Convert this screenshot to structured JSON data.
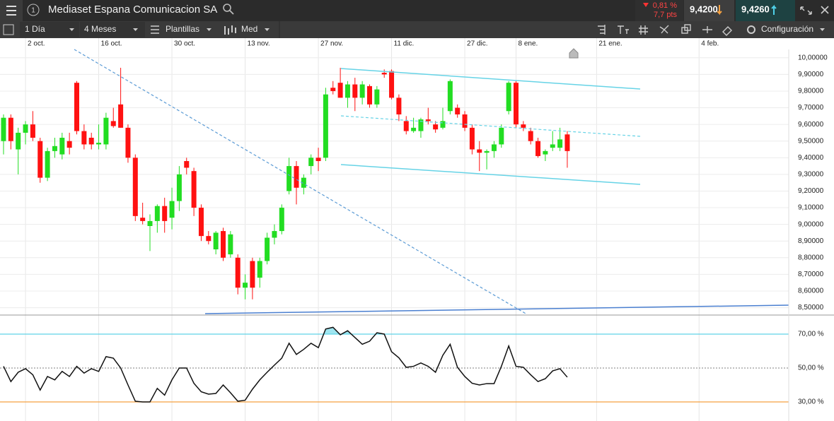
{
  "header": {
    "title": "Mediaset Espana Comunicacion SA",
    "info": "1",
    "change_pct": "0,81 %",
    "change_pts": "7,7 pts",
    "sell": "9,4200",
    "buy": "9,4260"
  },
  "toolbar": {
    "interval": "1 Día",
    "range": "4 Meses",
    "templates": "Plantillas",
    "style": "Med",
    "settings": "Configuración"
  },
  "chart_data": [
    {
      "type": "candlestick",
      "up_color": "#22dd22",
      "down_color": "#ff1111",
      "grid": true,
      "categories": [
        null,
        null,
        null,
        "2 oct.",
        null,
        null,
        null,
        null,
        null,
        null,
        null,
        null,
        null,
        "16 oct.",
        null,
        null,
        null,
        null,
        null,
        null,
        null,
        null,
        null,
        "30 oct.",
        null,
        null,
        null,
        null,
        null,
        null,
        null,
        null,
        null,
        "13 nov.",
        null,
        null,
        null,
        null,
        null,
        null,
        null,
        null,
        null,
        "27 nov.",
        null,
        null,
        null,
        null,
        null,
        null,
        null,
        null,
        null,
        "11 dic.",
        null,
        null,
        null,
        null,
        null,
        null,
        null,
        null,
        null,
        "27 dic.",
        null,
        null,
        null,
        null,
        null,
        null,
        "8 ene.",
        null,
        null,
        null,
        null,
        null,
        null,
        null,
        null,
        null,
        null,
        "21 ene.",
        null,
        null,
        null,
        null,
        null,
        null,
        null,
        null,
        null,
        null,
        null,
        null,
        null,
        "4 feb.",
        null,
        null,
        null,
        null,
        null,
        null,
        null,
        null,
        null,
        null,
        null,
        null
      ],
      "open": [
        9.5,
        9.64,
        9.45,
        9.55,
        9.6,
        9.5,
        9.28,
        9.44,
        9.42,
        9.5,
        9.85,
        9.56,
        9.52,
        9.48,
        9.48,
        9.62,
        9.72,
        9.58,
        9.4,
        9.04,
        8.99,
        9.02,
        9.11,
        9.04,
        9.14,
        9.38,
        9.32,
        9.1,
        8.93,
        8.85,
        8.96,
        8.82,
        8.8,
        8.62,
        8.78,
        8.68,
        8.78,
        8.92,
        8.96,
        9.2,
        9.35,
        9.22,
        9.35,
        9.4,
        9.4,
        9.82,
        9.85,
        9.76,
        9.84,
        9.76,
        9.83,
        9.72,
        9.91,
        9.92,
        9.76,
        9.62,
        9.56,
        9.56,
        9.63,
        9.6,
        9.58,
        9.68,
        9.7,
        9.66,
        9.58,
        9.45,
        9.43,
        9.44,
        9.48,
        9.68,
        9.85,
        9.6,
        9.56,
        9.5,
        9.42,
        9.46,
        9.46,
        9.54,
        null,
        null,
        null,
        null,
        null,
        null,
        null,
        null,
        null,
        null,
        null,
        null,
        null,
        null,
        null,
        null,
        null,
        null,
        null,
        null,
        null,
        null,
        null,
        null,
        null,
        null,
        null,
        null,
        null,
        null
      ],
      "high": [
        9.66,
        9.66,
        9.58,
        9.62,
        9.68,
        9.52,
        9.46,
        9.52,
        9.55,
        9.55,
        9.86,
        9.6,
        9.55,
        9.6,
        9.67,
        9.7,
        9.94,
        9.6,
        9.42,
        9.13,
        9.06,
        9.12,
        9.16,
        9.22,
        9.35,
        9.4,
        9.34,
        9.12,
        8.96,
        8.96,
        8.98,
        8.96,
        8.82,
        8.7,
        8.8,
        8.8,
        8.95,
        9.0,
        9.12,
        9.4,
        9.38,
        9.3,
        9.42,
        9.46,
        9.82,
        9.86,
        9.94,
        9.86,
        9.88,
        9.86,
        9.84,
        9.83,
        9.93,
        9.93,
        9.78,
        9.65,
        9.64,
        9.64,
        9.7,
        9.62,
        9.7,
        9.87,
        9.72,
        9.68,
        9.6,
        9.5,
        9.45,
        9.5,
        9.6,
        9.86,
        9.86,
        9.62,
        9.58,
        9.52,
        9.45,
        9.56,
        9.58,
        9.56,
        null,
        null,
        null,
        null,
        null,
        null,
        null,
        null,
        null,
        null,
        null,
        null,
        null,
        null,
        null,
        null,
        null,
        null,
        null,
        null,
        null,
        null,
        null,
        null,
        null,
        null,
        null,
        null,
        null,
        null
      ],
      "low": [
        9.42,
        9.45,
        9.3,
        9.48,
        9.5,
        9.25,
        9.26,
        9.4,
        9.39,
        9.42,
        9.54,
        9.45,
        9.45,
        9.45,
        9.45,
        9.58,
        9.58,
        9.37,
        9.02,
        9.0,
        8.84,
        8.95,
        8.95,
        8.97,
        9.08,
        9.3,
        9.05,
        8.9,
        8.88,
        8.82,
        8.78,
        8.8,
        8.58,
        8.55,
        8.55,
        8.62,
        8.76,
        8.88,
        8.94,
        9.18,
        9.12,
        9.18,
        9.3,
        9.32,
        9.38,
        9.78,
        9.76,
        9.7,
        9.68,
        9.72,
        9.7,
        9.7,
        9.88,
        9.75,
        9.62,
        9.54,
        9.55,
        9.52,
        9.6,
        9.55,
        9.57,
        9.66,
        9.64,
        9.56,
        9.42,
        9.32,
        9.33,
        9.4,
        9.46,
        9.66,
        9.58,
        9.56,
        9.48,
        9.4,
        9.38,
        9.44,
        9.44,
        9.34,
        null,
        null,
        null,
        null,
        null,
        null,
        null,
        null,
        null,
        null,
        null,
        null,
        null,
        null,
        null,
        null,
        null,
        null,
        null,
        null,
        null,
        null,
        null,
        null,
        null,
        null,
        null,
        null,
        null,
        null
      ],
      "close": [
        9.64,
        9.5,
        9.55,
        9.6,
        9.52,
        9.28,
        9.44,
        9.47,
        9.52,
        9.46,
        9.56,
        9.48,
        9.48,
        9.49,
        9.64,
        9.59,
        9.58,
        9.4,
        9.05,
        9.02,
        9.02,
        9.11,
        9.02,
        9.14,
        9.3,
        9.34,
        9.1,
        8.93,
        8.9,
        8.95,
        8.8,
        8.94,
        8.62,
        8.65,
        8.62,
        8.78,
        8.92,
        8.96,
        9.1,
        9.35,
        9.22,
        9.28,
        9.4,
        9.38,
        9.78,
        9.8,
        9.76,
        9.84,
        9.76,
        9.84,
        9.72,
        9.81,
        9.9,
        9.76,
        9.66,
        9.56,
        9.58,
        9.63,
        9.62,
        9.57,
        9.62,
        9.86,
        9.66,
        9.58,
        9.45,
        9.43,
        9.44,
        9.48,
        9.58,
        9.85,
        9.6,
        9.58,
        9.5,
        9.41,
        9.44,
        9.48,
        9.51,
        9.44,
        null,
        null,
        null,
        null,
        null,
        null,
        null,
        null,
        null,
        null,
        null,
        null,
        null,
        null,
        null,
        null,
        null,
        null,
        null,
        null,
        null,
        null,
        null,
        null,
        null,
        null,
        null,
        null,
        null,
        null
      ],
      "ylim": [
        8.46,
        10.05
      ],
      "yticks": [
        {
          "value": 8.5,
          "label": "8,50000"
        },
        {
          "value": 8.6,
          "label": "8,60000"
        },
        {
          "value": 8.7,
          "label": "8,70000"
        },
        {
          "value": 8.8,
          "label": "8,80000"
        },
        {
          "value": 8.9,
          "label": "8,90000"
        },
        {
          "value": 9.0,
          "label": "9,00000"
        },
        {
          "value": 9.1,
          "label": "9,10000"
        },
        {
          "value": 9.2,
          "label": "9,20000"
        },
        {
          "value": 9.3,
          "label": "9,30000"
        },
        {
          "value": 9.4,
          "label": "9,40000"
        },
        {
          "value": 9.5,
          "label": "9,50000"
        },
        {
          "value": 9.6,
          "label": "9,60000"
        },
        {
          "value": 9.7,
          "label": "9,70000"
        },
        {
          "value": 9.8,
          "label": "9,80000"
        },
        {
          "value": 9.9,
          "label": "9,90000"
        },
        {
          "value": 10.0,
          "label": "10,00000"
        }
      ]
    },
    {
      "type": "line",
      "color": "#111111",
      "overbought_color": "#5fd3e6",
      "oversold_color": "#f5a142",
      "values": [
        51,
        42,
        47.5,
        49.6,
        46,
        37,
        45,
        43,
        48,
        45,
        51,
        47,
        49.6,
        48,
        56.7,
        55.8,
        50,
        40,
        30.4,
        30,
        30,
        38,
        34,
        43,
        50,
        50,
        41,
        36,
        34.6,
        35,
        40,
        35.4,
        30.4,
        31,
        37.5,
        43,
        47.5,
        51.7,
        55.8,
        64.6,
        58,
        61,
        64.6,
        62,
        73,
        74,
        69.6,
        72,
        68,
        64,
        65.8,
        70.8,
        70,
        59.6,
        56,
        50.4,
        51,
        53,
        51,
        47.5,
        57.5,
        64,
        50.4,
        45,
        41,
        40,
        40.8,
        40.8,
        51,
        63,
        51,
        50.4,
        46,
        42,
        43.7,
        48.3,
        49.6,
        44.6,
        null,
        null,
        null,
        null,
        null,
        null,
        null,
        null,
        null,
        null,
        null,
        null,
        null,
        null,
        null,
        null,
        null,
        null,
        null,
        null,
        null,
        null,
        null,
        null,
        null,
        null,
        null,
        null,
        null,
        null
      ],
      "ylim": [
        18.75,
        80.4
      ],
      "yticks": [
        {
          "value": 30,
          "label": "30,00 %"
        },
        {
          "value": 50,
          "label": "50,00 %"
        },
        {
          "value": 70,
          "label": "70,00 %"
        }
      ]
    }
  ]
}
